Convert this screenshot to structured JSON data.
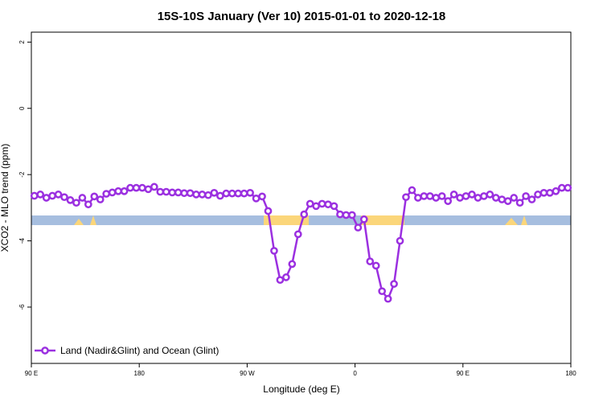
{
  "chart_data": {
    "type": "line",
    "title": "15S-10S January (Ver 10)   2015-01-01 to 2020-12-18",
    "xlabel": "Longitude (deg E)",
    "ylabel": "XCO2 - MLO trend (ppm)",
    "x": [
      92.5,
      97.5,
      102.5,
      107.5,
      112.5,
      117.5,
      122.5,
      127.5,
      132.5,
      137.5,
      142.5,
      147.5,
      152.5,
      157.5,
      162.5,
      167.5,
      172.5,
      177.5,
      182.5,
      187.5,
      192.5,
      197.5,
      202.5,
      207.5,
      212.5,
      217.5,
      222.5,
      227.5,
      232.5,
      237.5,
      242.5,
      247.5,
      252.5,
      257.5,
      262.5,
      267.5,
      272.5,
      277.5,
      282.5,
      287.5,
      292.5,
      297.5,
      302.5,
      307.5,
      312.5,
      317.5,
      322.5,
      327.5,
      332.5,
      337.5,
      342.5,
      347.5,
      352.5,
      357.5,
      362.5,
      367.5,
      372.5,
      377.5,
      382.5,
      387.5,
      392.5,
      397.5,
      402.5,
      407.5,
      412.5,
      417.5,
      422.5,
      427.5,
      432.5,
      437.5,
      442.5,
      447.5,
      452.5,
      457.5,
      462.5,
      467.5,
      472.5,
      477.5,
      482.5,
      487.5,
      492.5,
      497.5,
      502.5,
      507.5,
      512.5,
      517.5,
      522.5,
      527.5,
      532.5,
      537.5
    ],
    "series": [
      {
        "name": "Land (Nadir&Glint) and Ocean (Glint)",
        "color": "#9b30e0",
        "values": [
          -2.64,
          -2.6,
          -2.7,
          -2.64,
          -2.6,
          -2.68,
          -2.77,
          -2.85,
          -2.7,
          -2.9,
          -2.66,
          -2.75,
          -2.58,
          -2.54,
          -2.5,
          -2.5,
          -2.4,
          -2.4,
          -2.4,
          -2.44,
          -2.37,
          -2.52,
          -2.52,
          -2.54,
          -2.54,
          -2.56,
          -2.56,
          -2.6,
          -2.6,
          -2.62,
          -2.55,
          -2.64,
          -2.57,
          -2.57,
          -2.57,
          -2.57,
          -2.55,
          -2.72,
          -2.66,
          -3.1,
          -4.3,
          -5.18,
          -5.1,
          -4.7,
          -3.8,
          -3.2,
          -2.88,
          -2.95,
          -2.88,
          -2.9,
          -2.95,
          -3.2,
          -3.22,
          -3.22,
          -3.6,
          -3.35,
          -4.62,
          -4.75,
          -5.52,
          -5.75,
          -5.3,
          -4.0,
          -2.68,
          -2.47,
          -2.7,
          -2.65,
          -2.65,
          -2.7,
          -2.65,
          -2.8,
          -2.6,
          -2.7,
          -2.65,
          -2.6,
          -2.7,
          -2.65,
          -2.6,
          -2.7,
          -2.75,
          -2.8,
          -2.7,
          -2.85,
          -2.65,
          -2.75,
          -2.6,
          -2.55,
          -2.55,
          -2.5,
          -2.4,
          -2.4
        ]
      }
    ],
    "xlim": [
      90,
      540
    ],
    "xticks": [
      {
        "value": 90,
        "label": "90 E"
      },
      180,
      {
        "value": 270,
        "label": "90 W"
      },
      {
        "value": 360,
        "label": "0"
      },
      {
        "value": 450,
        "label": "90 E"
      },
      {
        "value": 540,
        "label": "180"
      }
    ],
    "ylim": [
      -7.7,
      2.3
    ],
    "yticks": [
      -6,
      -4,
      -2,
      0,
      2
    ],
    "legend": "bottom-left"
  }
}
